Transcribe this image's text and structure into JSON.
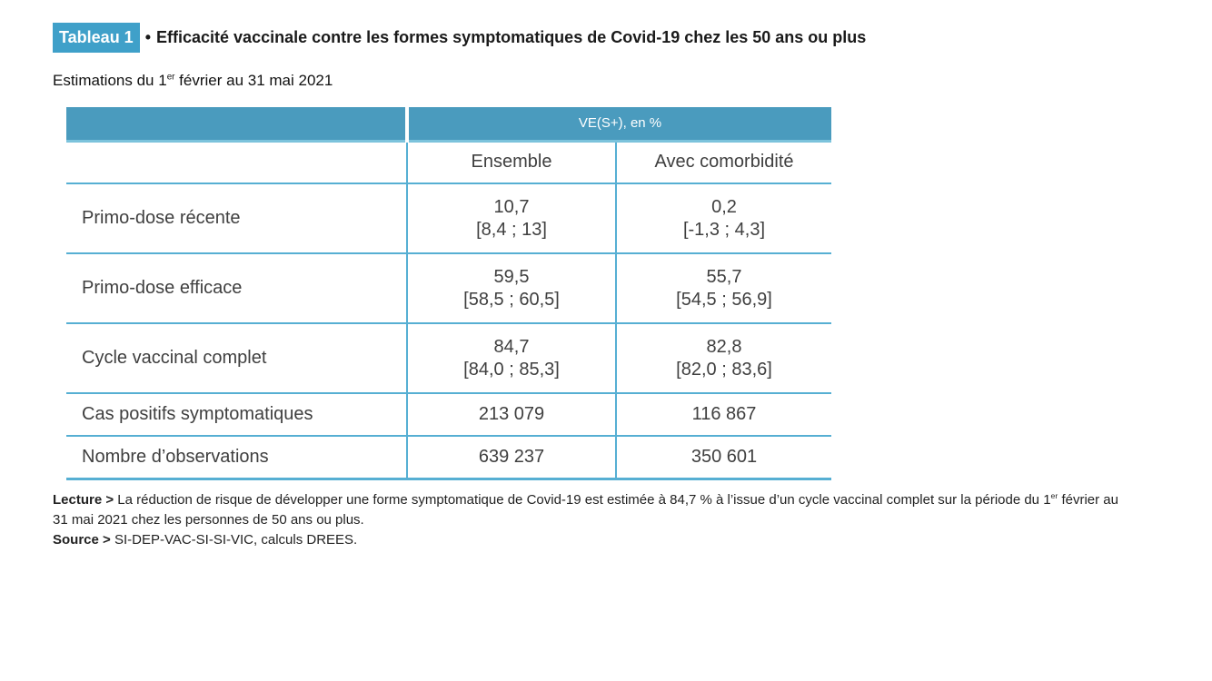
{
  "title": {
    "tag": "Tableau 1",
    "bullet": "•",
    "text": "Efficacité vaccinale contre les formes symptomatiques de Covid-19 chez les 50 ans ou plus"
  },
  "subtitle": {
    "part1": "Estimations du 1",
    "sup": "er",
    "part2": " février au 31 mai 2021"
  },
  "table": {
    "group_header": "VE(S+), en %",
    "columns": [
      "Ensemble",
      "Avec comorbidité"
    ],
    "rows": [
      {
        "label": "Primo-dose récente",
        "ensemble": {
          "value": "10,7",
          "ci": "[8,4 ; 13]"
        },
        "comorbidite": {
          "value": "0,2",
          "ci": "[-1,3 ; 4,3]"
        }
      },
      {
        "label": "Primo-dose efficace",
        "ensemble": {
          "value": "59,5",
          "ci": "[58,5 ; 60,5]"
        },
        "comorbidite": {
          "value": "55,7",
          "ci": "[54,5 ; 56,9]"
        }
      },
      {
        "label": "Cycle vaccinal complet",
        "ensemble": {
          "value": "84,7",
          "ci": "[84,0 ; 85,3]"
        },
        "comorbidite": {
          "value": "82,8",
          "ci": "[82,0 ; 83,6]"
        }
      },
      {
        "label": "Cas positifs symptomatiques",
        "ensemble": {
          "value": "213 079"
        },
        "comorbidite": {
          "value": "116 867"
        }
      },
      {
        "label": "Nombre d’observations",
        "ensemble": {
          "value": "639 237"
        },
        "comorbidite": {
          "value": "350 601"
        }
      }
    ]
  },
  "notes": {
    "lecture_label": "Lecture >",
    "lecture_part1": " La réduction de risque de développer une forme symptomatique de Covid-19 est estimée à 84,7 % à l’issue d’un cycle vaccinal complet sur la période du 1",
    "lecture_sup": "er",
    "lecture_part2": " février au 31 mai 2021 chez les personnes de 50 ans ou plus.",
    "source_label": "Source >",
    "source_text": " SI-DEP-VAC-SI-SI-VIC, calculs DREES."
  },
  "colors": {
    "tag_background": "#3fa0c9",
    "header_background": "#4a9bbe",
    "grid_line": "#56afd3"
  }
}
